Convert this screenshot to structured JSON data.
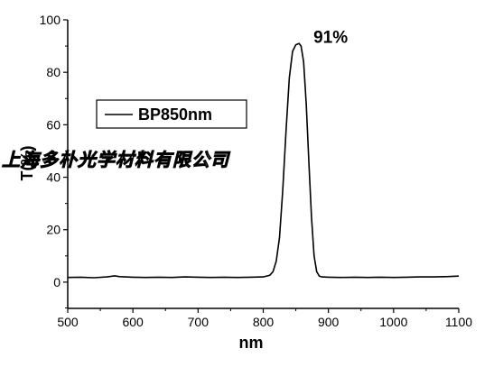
{
  "chart_data": {
    "type": "line",
    "xlabel": "nm",
    "ylabel": "T(%)",
    "xlim": [
      500,
      1100
    ],
    "ylim": [
      -10,
      100
    ],
    "x_ticks": [
      500,
      600,
      700,
      800,
      900,
      1000,
      1100
    ],
    "y_ticks": [
      0,
      20,
      40,
      60,
      80,
      100
    ],
    "grid": false,
    "legend": {
      "placement": "upper-left",
      "entries": [
        "BP850nm"
      ]
    },
    "series": [
      {
        "name": "BP850nm",
        "color": "#000000",
        "points": [
          [
            500,
            1.8
          ],
          [
            520,
            1.9
          ],
          [
            540,
            1.7
          ],
          [
            560,
            2.0
          ],
          [
            572,
            2.4
          ],
          [
            580,
            2.1
          ],
          [
            600,
            1.9
          ],
          [
            620,
            1.8
          ],
          [
            640,
            1.9
          ],
          [
            660,
            1.8
          ],
          [
            680,
            2.0
          ],
          [
            700,
            1.9
          ],
          [
            720,
            1.8
          ],
          [
            740,
            1.9
          ],
          [
            760,
            1.8
          ],
          [
            780,
            1.9
          ],
          [
            800,
            2.0
          ],
          [
            810,
            2.6
          ],
          [
            815,
            4.0
          ],
          [
            820,
            8.0
          ],
          [
            825,
            17.0
          ],
          [
            830,
            35.0
          ],
          [
            835,
            58.0
          ],
          [
            840,
            78.0
          ],
          [
            845,
            88.0
          ],
          [
            850,
            90.5
          ],
          [
            855,
            91.0
          ],
          [
            858,
            90.0
          ],
          [
            862,
            84.0
          ],
          [
            866,
            68.0
          ],
          [
            870,
            46.0
          ],
          [
            874,
            25.0
          ],
          [
            878,
            10.0
          ],
          [
            882,
            4.0
          ],
          [
            886,
            2.3
          ],
          [
            890,
            2.0
          ],
          [
            900,
            1.9
          ],
          [
            920,
            1.8
          ],
          [
            940,
            1.9
          ],
          [
            960,
            1.8
          ],
          [
            980,
            1.9
          ],
          [
            1000,
            1.8
          ],
          [
            1020,
            1.9
          ],
          [
            1040,
            2.0
          ],
          [
            1060,
            2.0
          ],
          [
            1080,
            2.1
          ],
          [
            1100,
            2.3
          ]
        ]
      }
    ],
    "annotations": [
      {
        "text": "91%",
        "x": 877,
        "y": 93
      }
    ],
    "watermark": "上海多朴光学材料有限公司"
  }
}
